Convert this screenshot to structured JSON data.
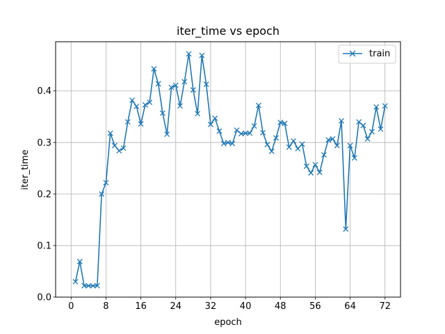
{
  "chart_data": {
    "type": "line",
    "title": "iter_time vs epoch",
    "xlabel": "epoch",
    "ylabel": "iter_time",
    "xlim": [
      -3.55,
      75.55
    ],
    "ylim": [
      0.0,
      0.4955
    ],
    "xticks": [
      0,
      8,
      16,
      24,
      32,
      40,
      48,
      56,
      64,
      72
    ],
    "yticks": [
      0.0,
      0.1,
      0.2,
      0.3,
      0.4
    ],
    "ytick_labels": [
      "0.0",
      "0.1",
      "0.2",
      "0.3",
      "0.4"
    ],
    "grid": true,
    "legend_position": "top-right",
    "marker": "x",
    "color": "#1f77b4",
    "series": [
      {
        "name": "train",
        "x": [
          1,
          2,
          3,
          4,
          5,
          6,
          7,
          8,
          9,
          10,
          11,
          12,
          13,
          14,
          15,
          16,
          17,
          18,
          19,
          20,
          21,
          22,
          23,
          24,
          25,
          26,
          27,
          28,
          29,
          30,
          31,
          32,
          33,
          34,
          35,
          36,
          37,
          38,
          39,
          40,
          41,
          42,
          43,
          44,
          45,
          46,
          47,
          48,
          49,
          50,
          51,
          52,
          53,
          54,
          55,
          56,
          57,
          58,
          59,
          60,
          61,
          62,
          63,
          64,
          65,
          66,
          67,
          68,
          69,
          70,
          71,
          72
        ],
        "values": [
          0.03,
          0.069,
          0.022,
          0.022,
          0.022,
          0.022,
          0.2,
          0.222,
          0.318,
          0.294,
          0.284,
          0.289,
          0.34,
          0.382,
          0.37,
          0.336,
          0.373,
          0.378,
          0.443,
          0.414,
          0.357,
          0.316,
          0.407,
          0.411,
          0.371,
          0.418,
          0.472,
          0.402,
          0.356,
          0.469,
          0.413,
          0.335,
          0.347,
          0.322,
          0.298,
          0.3,
          0.298,
          0.324,
          0.317,
          0.318,
          0.318,
          0.332,
          0.372,
          0.319,
          0.296,
          0.283,
          0.309,
          0.339,
          0.337,
          0.291,
          0.303,
          0.288,
          0.297,
          0.254,
          0.241,
          0.257,
          0.242,
          0.276,
          0.305,
          0.307,
          0.294,
          0.342,
          0.132,
          0.294,
          0.27,
          0.34,
          0.333,
          0.307,
          0.321,
          0.369,
          0.326,
          0.371
        ]
      }
    ]
  }
}
